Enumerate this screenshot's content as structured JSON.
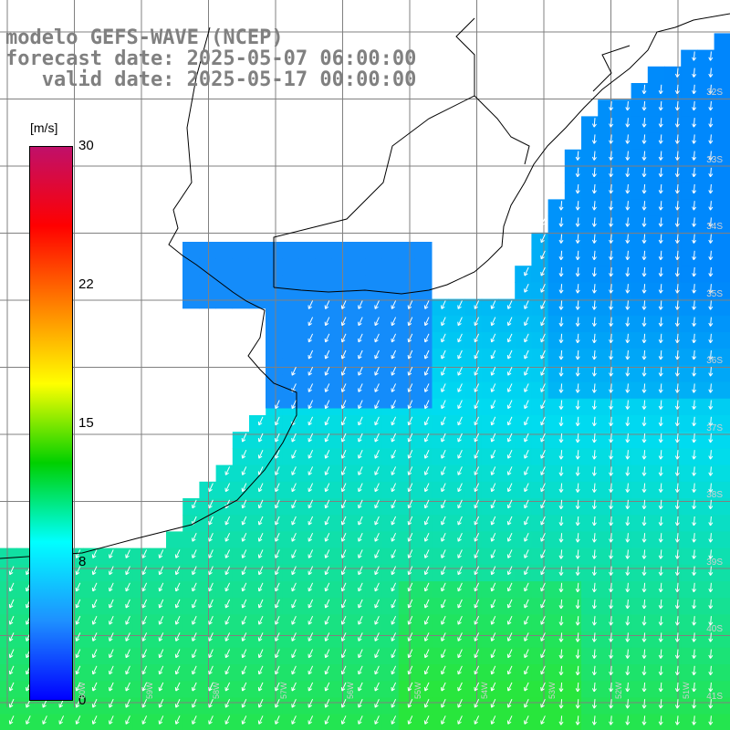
{
  "header": {
    "model_line": "modelo GEFS-WAVE (NCEP)",
    "forecast_line": "forecast date: 2025-05-07 06:00:00",
    "valid_line": "   valid date: 2025-05-17 00:00:00"
  },
  "colorbar": {
    "unit": "[m/s]",
    "ticks": [
      "30",
      "22",
      "15",
      "8",
      "0"
    ],
    "min": 0,
    "max": 30,
    "stops": [
      "#0000ff",
      "#1e90ff",
      "#00ffff",
      "#00d000",
      "#ffff00",
      "#ff8000",
      "#ff0000",
      "#c0106a"
    ]
  },
  "map": {
    "lat_labels": [
      "32S",
      "33S",
      "34S",
      "35S",
      "36S",
      "37S",
      "38S",
      "39S",
      "40S",
      "41S"
    ],
    "lon_labels": [
      "60W",
      "59W",
      "58W",
      "57W",
      "56W",
      "55W",
      "54W",
      "53W",
      "52W",
      "51W"
    ],
    "land_color": "#ffffff",
    "grid_color": "#808080",
    "arrow_color": "#ffffff"
  }
}
